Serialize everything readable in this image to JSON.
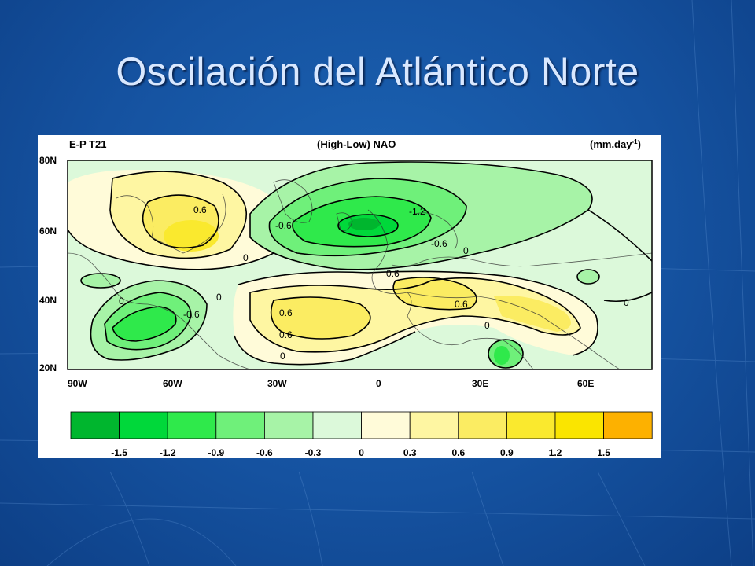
{
  "slide": {
    "title": "Oscilación del Atlántico Norte"
  },
  "colors": {
    "background": "#1552a0",
    "title_text": "#d9e8ff",
    "palette": [
      "#00b62e",
      "#00d83a",
      "#2fe94b",
      "#6ff07a",
      "#a7f3a7",
      "#dcf9da",
      "#fffbd9",
      "#fef6a2",
      "#fbec62",
      "#fae92e",
      "#fae500",
      "#fdb100"
    ]
  },
  "map": {
    "header_left": "E-P  T21",
    "header_center": "(High-Low) NAO",
    "header_right_unit": "(mm.day",
    "header_right_exp": "-1",
    "header_right_close": ")",
    "lat_ticks": [
      "80N",
      "60N",
      "40N",
      "20N"
    ],
    "lon_ticks": [
      "90W",
      "60W",
      "30W",
      "0",
      "30E",
      "60E"
    ],
    "contour_labels": [
      "0.6",
      "-0.6",
      "-1.2",
      "-0.6",
      "0.6",
      "0.6",
      "0",
      "-0.6",
      "0",
      "0.6",
      "0.6",
      "0",
      "0",
      "0",
      "0",
      "0"
    ]
  },
  "colorbar": {
    "labels": [
      "-1.5",
      "-1.2",
      "-0.9",
      "-0.6",
      "-0.3",
      "0",
      "0.3",
      "0.6",
      "0.9",
      "1.2",
      "1.5"
    ],
    "colors": [
      "#00b62e",
      "#00d83a",
      "#2fe94b",
      "#6ff07a",
      "#a7f3a7",
      "#dcf9da",
      "#fffbd9",
      "#fef6a2",
      "#fbec62",
      "#fae92e",
      "#fae500",
      "#fdb100"
    ]
  }
}
